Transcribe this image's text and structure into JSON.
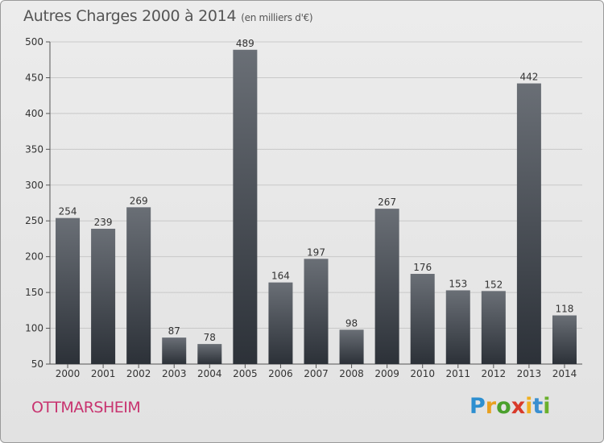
{
  "title": "Autres Charges 2000 à 2014",
  "subtitle": "(en milliers d'€)",
  "city": "OTTMARSHEIM",
  "logo": {
    "letters": [
      "P",
      "r",
      "o",
      "x",
      "i",
      "t",
      "i"
    ],
    "colors": [
      "#2d8fd0",
      "#e8a020",
      "#4aa02c",
      "#d83a2a",
      "#f0b020",
      "#3a8fd0",
      "#6ab02c"
    ]
  },
  "chart_data": {
    "type": "bar",
    "categories": [
      "2000",
      "2001",
      "2002",
      "2003",
      "2004",
      "2005",
      "2006",
      "2007",
      "2008",
      "2009",
      "2010",
      "2011",
      "2012",
      "2013",
      "2014"
    ],
    "values": [
      254,
      239,
      269,
      87,
      78,
      489,
      164,
      197,
      98,
      267,
      176,
      153,
      152,
      442,
      118
    ],
    "ylim": [
      50,
      500
    ],
    "yticks": [
      50,
      100,
      150,
      200,
      250,
      300,
      350,
      400,
      450,
      500
    ],
    "grid": true,
    "colors": {
      "bar_top": "#6a6f76",
      "bar_bottom": "#2c3138",
      "grid": "#c8c8c8"
    }
  }
}
